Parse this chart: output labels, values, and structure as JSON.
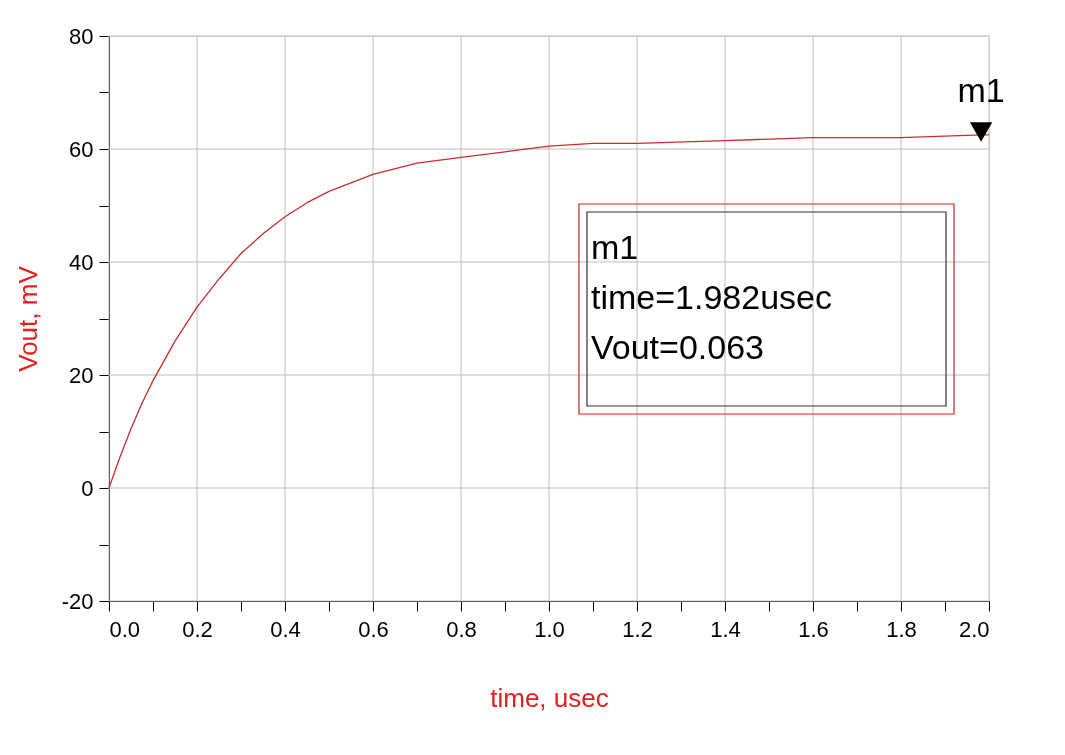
{
  "chart_data": {
    "type": "line",
    "xlabel": "time, usec",
    "ylabel": "Vout, mV",
    "x": [
      0,
      0.025,
      0.05,
      0.075,
      0.1,
      0.125,
      0.15,
      0.2,
      0.25,
      0.3,
      0.35,
      0.4,
      0.45,
      0.5,
      0.55,
      0.6,
      0.7,
      0.8,
      0.9,
      1.0,
      1.1,
      1.2,
      1.4,
      1.6,
      1.8,
      1.982,
      2.0
    ],
    "series": [
      {
        "color": "#cc2b2b",
        "values": [
          0,
          5.5,
          10.5,
          15,
          19,
          22.5,
          26,
          32,
          37,
          41.5,
          45,
          48,
          50.5,
          52.5,
          54,
          55.5,
          57.5,
          58.5,
          59.5,
          60.5,
          61,
          61,
          61.5,
          62,
          62,
          62.5,
          62.5
        ]
      },
      {
        "type": "scatter",
        "marker": "triangle",
        "color": "#000000",
        "x": [
          1.982
        ],
        "values": [
          63
        ]
      }
    ],
    "xlim": [
      0,
      2.0
    ],
    "ylim": [
      -20,
      80
    ],
    "xticks": [
      {
        "value": 0,
        "label": "0.0"
      },
      {
        "value": 0.1,
        "label": null
      },
      {
        "value": 0.2,
        "label": "0.2"
      },
      {
        "value": 0.3,
        "label": null
      },
      {
        "value": 0.4,
        "label": "0.4"
      },
      {
        "value": 0.5,
        "label": null
      },
      {
        "value": 0.6,
        "label": "0.6"
      },
      {
        "value": 0.7,
        "label": null
      },
      {
        "value": 0.8,
        "label": "0.8"
      },
      {
        "value": 0.9,
        "label": null
      },
      {
        "value": 1.0,
        "label": "1.0"
      },
      {
        "value": 1.1,
        "label": null
      },
      {
        "value": 1.2,
        "label": "1.2"
      },
      {
        "value": 1.3,
        "label": null
      },
      {
        "value": 1.4,
        "label": "1.4"
      },
      {
        "value": 1.5,
        "label": null
      },
      {
        "value": 1.6,
        "label": "1.6"
      },
      {
        "value": 1.7,
        "label": null
      },
      {
        "value": 1.8,
        "label": "1.8"
      },
      {
        "value": 1.9,
        "label": null
      },
      {
        "value": 2.0,
        "label": "2.0"
      }
    ],
    "yticks": [
      -20,
      {
        "value": -10,
        "label": null
      },
      0,
      {
        "value": 10,
        "label": null
      },
      20,
      {
        "value": 30,
        "label": null
      },
      40,
      {
        "value": 50,
        "label": null
      },
      60,
      {
        "value": 70,
        "label": null
      },
      80
    ],
    "grid": true,
    "marker": "none",
    "line_style": "solid",
    "annotations": [
      {
        "text": "m1",
        "x": 1.982,
        "y": 63
      },
      "m1",
      "time=1.982usec",
      "Vout=0.063"
    ]
  }
}
